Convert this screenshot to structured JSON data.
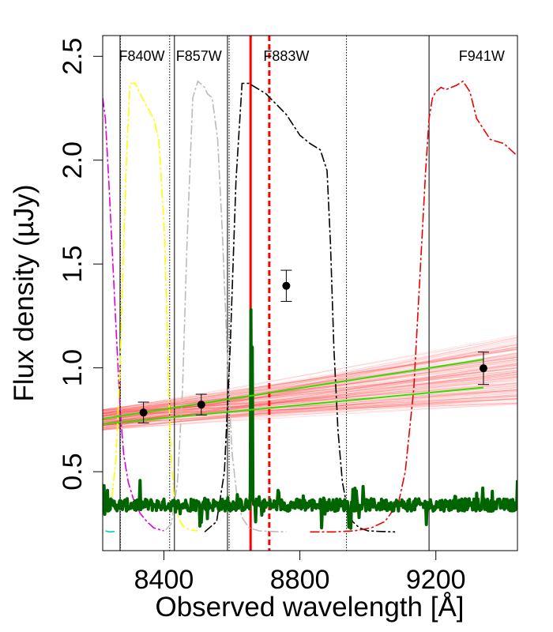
{
  "chart_data": {
    "type": "line",
    "title": "",
    "xlabel": "Observed wavelength [Å]",
    "ylabel": "Flux density (µJy)",
    "xlim": [
      8220,
      9440
    ],
    "ylim": [
      0.12,
      2.6
    ],
    "x_ticks": [
      8400,
      8800,
      9200
    ],
    "y_ticks": [
      0.5,
      1.0,
      1.5,
      2.0,
      2.5
    ],
    "x_tick_labels": [
      "8400",
      "8800",
      "9200"
    ],
    "y_tick_labels": [
      "0.5",
      "1.0",
      "1.5",
      "2.0",
      "2.5"
    ],
    "filter_labels": [
      {
        "text": "F840W",
        "x": 8335
      },
      {
        "text": "F857W",
        "x": 8503
      },
      {
        "text": "F883W",
        "x": 8760
      },
      {
        "text": "F941W",
        "x": 9335
      }
    ],
    "vertical_lines": [
      {
        "x": 8271,
        "style": "solid",
        "color": "#000000"
      },
      {
        "x": 8272,
        "style": "dotted",
        "color": "#000000"
      },
      {
        "x": 8417,
        "style": "dotted",
        "color": "#000000"
      },
      {
        "x": 8431,
        "style": "solid",
        "color": "#000000"
      },
      {
        "x": 8587,
        "style": "solid",
        "color": "#000000"
      },
      {
        "x": 8592,
        "style": "dotted",
        "color": "#000000"
      },
      {
        "x": 8937,
        "style": "dotted",
        "color": "#000000"
      },
      {
        "x": 9180,
        "style": "solid",
        "color": "#000000"
      },
      {
        "x": 8655,
        "style": "solid",
        "color": "#ff0000",
        "width": 3
      },
      {
        "x": 8710,
        "style": "dashed",
        "color": "#ff0000",
        "width": 3
      }
    ],
    "series": [
      {
        "name": "photometry",
        "kind": "points",
        "color": "#000000",
        "points": [
          {
            "x": 8340,
            "y": 0.785,
            "err": 0.05
          },
          {
            "x": 8510,
            "y": 0.823,
            "err": 0.05
          },
          {
            "x": 8760,
            "y": 1.395,
            "err": 0.075
          },
          {
            "x": 9340,
            "y": 0.998,
            "err": 0.078
          }
        ]
      },
      {
        "name": "model-fit-band-upper",
        "kind": "line",
        "color": "#33dd00",
        "x": [
          8220,
          9340
        ],
        "y": [
          0.755,
          1.04
        ]
      },
      {
        "name": "model-fit-band-lower",
        "kind": "line",
        "color": "#33dd00",
        "x": [
          8220,
          9340
        ],
        "y": [
          0.73,
          0.905
        ]
      },
      {
        "name": "model-fit-samples",
        "kind": "fan",
        "color": "#ff2020",
        "x_start": 8220,
        "x_end": 9440,
        "y_start_range": [
          0.7,
          0.8
        ],
        "y_end_range": [
          0.82,
          1.16
        ],
        "count": 160
      },
      {
        "name": "spectrum",
        "kind": "noisy-line",
        "color": "#006400",
        "baseline": 0.34,
        "x_start": 8220,
        "x_end": 9440,
        "peaks": [
          {
            "x": 8655,
            "y": 1.28
          },
          {
            "x": 8660,
            "y": 1.1
          }
        ]
      },
      {
        "name": "filter-magenta",
        "kind": "line",
        "color": "#dd00dd",
        "dash": "12,3,3,3",
        "x": [
          8220,
          8228,
          8238,
          8250,
          8262,
          8272,
          8282,
          8295,
          8310,
          8330,
          8350,
          8370,
          8390,
          8400
        ],
        "y": [
          2.3,
          2.2,
          1.9,
          1.5,
          1.1,
          0.78,
          0.58,
          0.45,
          0.37,
          0.3,
          0.26,
          0.23,
          0.22,
          0.215
        ]
      },
      {
        "name": "filter-cyan",
        "kind": "line",
        "color": "#00cccc",
        "dash": "12,3,3,3",
        "x": [
          8228,
          8240,
          8255
        ],
        "y": [
          0.215,
          0.21,
          0.212
        ]
      },
      {
        "name": "filter-yellow",
        "kind": "line",
        "color": "#ffff00",
        "dash": "12,3,3,3",
        "x": [
          8232,
          8246,
          8258,
          8270,
          8280,
          8290,
          8300,
          8316,
          8330,
          8350,
          8370,
          8385,
          8400,
          8408,
          8415,
          8422,
          8430,
          8440,
          8455,
          8475,
          8500
        ],
        "y": [
          0.3,
          0.36,
          0.55,
          0.95,
          1.5,
          2.0,
          2.37,
          2.37,
          2.32,
          2.26,
          2.2,
          2.1,
          1.7,
          1.3,
          0.85,
          0.55,
          0.38,
          0.29,
          0.24,
          0.22,
          0.215
        ]
      },
      {
        "name": "filter-gray",
        "kind": "line",
        "color": "#bbbbbb",
        "dash": "12,3,3,3",
        "x": [
          8405,
          8422,
          8440,
          8455,
          8468,
          8485,
          8500,
          8520,
          8528,
          8542,
          8558,
          8572,
          8588,
          8600,
          8615,
          8630,
          8650,
          8680,
          8720,
          8760
        ],
        "y": [
          0.22,
          0.25,
          0.45,
          0.9,
          1.6,
          2.3,
          2.38,
          2.35,
          2.32,
          2.3,
          2.1,
          1.65,
          1.0,
          0.6,
          0.38,
          0.28,
          0.23,
          0.215,
          0.212,
          0.21
        ]
      },
      {
        "name": "filter-black",
        "kind": "line",
        "color": "#000000",
        "dash": "12,3,3,3",
        "x": [
          8520,
          8555,
          8578,
          8595,
          8612,
          8630,
          8650,
          8700,
          8760,
          8800,
          8830,
          8860,
          8880,
          8890,
          8900,
          8912,
          8925,
          8940,
          8955,
          8975,
          9000,
          9040,
          9080
        ],
        "y": [
          0.21,
          0.26,
          0.5,
          1.1,
          1.9,
          2.37,
          2.37,
          2.32,
          2.22,
          2.12,
          2.08,
          2.05,
          1.95,
          1.6,
          1.1,
          0.7,
          0.45,
          0.32,
          0.26,
          0.23,
          0.215,
          0.212,
          0.21
        ]
      },
      {
        "name": "filter-red",
        "kind": "line",
        "color": "#ee0000",
        "dash": "12,3,3,3",
        "x": [
          8830,
          8900,
          8960,
          9010,
          9050,
          9090,
          9110,
          9135,
          9155,
          9170,
          9180,
          9190,
          9200,
          9215,
          9230,
          9260,
          9280,
          9300,
          9320,
          9360,
          9400,
          9440
        ],
        "y": [
          0.21,
          0.21,
          0.215,
          0.23,
          0.26,
          0.35,
          0.5,
          0.9,
          1.5,
          1.95,
          2.2,
          2.3,
          2.33,
          2.35,
          2.34,
          2.36,
          2.38,
          2.33,
          2.2,
          2.1,
          2.08,
          2.02
        ]
      }
    ]
  }
}
